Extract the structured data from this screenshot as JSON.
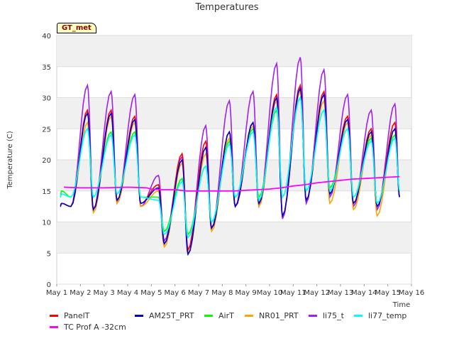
{
  "badge": "GT_met",
  "colors": {
    "PanelT": "#ff0000",
    "AM25T_PRT": "#0000cd",
    "AirT": "#00ff00",
    "NR01_PRT": "#ffa500",
    "li75_t": "#a020f0",
    "li77_temp": "#00ffff",
    "TC Prof A -32cm": "#ff00ff"
  },
  "chart_data": {
    "type": "line",
    "title": "Temperatures",
    "xlabel": "Time",
    "ylabel": "Temperature (C)",
    "ylim": [
      0,
      40
    ],
    "yticks": [
      0,
      5,
      10,
      15,
      20,
      25,
      30,
      35,
      40
    ],
    "xlim": [
      1,
      16
    ],
    "xticks": [
      1,
      2,
      3,
      4,
      5,
      6,
      7,
      8,
      9,
      10,
      11,
      12,
      13,
      14,
      15,
      16
    ],
    "xtick_labels": [
      "May 1",
      "May 2",
      "May 3",
      "May 4",
      "May 5",
      "May 6",
      "May 7",
      "May 8",
      "May 9",
      "May 10",
      "May 11",
      "May 12",
      "May 13",
      "May 14",
      "May 15",
      "May 16"
    ],
    "grid": true,
    "legend_position": "bottom",
    "x_unit": "day of May",
    "daily_max": {
      "x": [
        1.2,
        2.3,
        3.3,
        4.3,
        5.3,
        6.3,
        7.3,
        8.3,
        9.3,
        10.3,
        11.3,
        12.3,
        13.3,
        14.3,
        15.3
      ],
      "PanelT": [
        13,
        28,
        28,
        27,
        16,
        21,
        23,
        24.5,
        26,
        30.5,
        32,
        31,
        27,
        25,
        26
      ],
      "AM25T_PRT": [
        13,
        27.5,
        27.5,
        26.5,
        15.5,
        20,
        22,
        24.5,
        26,
        30,
        31.5,
        30.5,
        26.5,
        24.5,
        25
      ],
      "AirT": [
        15,
        25,
        24.5,
        24.5,
        14,
        17,
        19,
        23,
        25,
        28,
        30,
        28,
        25,
        23.5,
        24
      ],
      "NR01_PRT": [
        13,
        26,
        27,
        26,
        15,
        19.5,
        21,
        23.5,
        25.5,
        29.5,
        31,
        29.5,
        26,
        24,
        25
      ],
      "li75_t": [
        13,
        32,
        31,
        30.5,
        17.5,
        20.5,
        25.5,
        29.5,
        31,
        35.5,
        36.5,
        34.5,
        30.5,
        28,
        29
      ],
      "li77_temp": [
        14.5,
        25,
        24,
        24,
        13.5,
        16.5,
        19,
        22.5,
        24.5,
        28.5,
        30,
        28,
        25,
        23,
        23.5
      ]
    },
    "daily_min": {
      "x": [
        1.6,
        2.55,
        3.55,
        4.55,
        5.55,
        6.55,
        7.55,
        8.55,
        9.55,
        10.55,
        11.55,
        12.55,
        13.55,
        14.55,
        15.5
      ],
      "PanelT": [
        12.5,
        12,
        13.5,
        13,
        6.5,
        5.5,
        9,
        12.5,
        13,
        11,
        13.5,
        14.5,
        13,
        12.5,
        14
      ],
      "AM25T_PRT": [
        12.5,
        12,
        13.5,
        13,
        6.5,
        4.8,
        9,
        12.5,
        13,
        11,
        13.5,
        14.5,
        13,
        12.5,
        14
      ],
      "AirT": [
        14,
        14,
        14.5,
        14,
        8.5,
        8,
        10,
        14,
        14,
        14,
        15,
        15.5,
        14,
        13,
        15
      ],
      "NR01_PRT": [
        12.5,
        11.5,
        13,
        12.5,
        6,
        5,
        8.5,
        12.5,
        12.5,
        11,
        13.5,
        13,
        12,
        11,
        14
      ],
      "li75_t": [
        12.5,
        12,
        13,
        12.5,
        7,
        5.5,
        9,
        12.5,
        12.5,
        10.5,
        13,
        14,
        12.5,
        12,
        14
      ],
      "li77_temp": [
        14,
        14,
        14.5,
        14,
        8,
        7.5,
        10,
        14,
        13.5,
        14,
        15,
        15,
        14,
        13,
        15
      ]
    },
    "series": [
      {
        "name": "PanelT"
      },
      {
        "name": "AM25T_PRT"
      },
      {
        "name": "AirT"
      },
      {
        "name": "NR01_PRT"
      },
      {
        "name": "li75_t"
      },
      {
        "name": "li77_temp"
      },
      {
        "name": "TC Prof A -32cm",
        "x": [
          1.3,
          2,
          3,
          4,
          4.8,
          5,
          5.5,
          6,
          6.5,
          7,
          7.5,
          8,
          8.5,
          9,
          9.5,
          10,
          10.5,
          11,
          11.5,
          12,
          12.5,
          13,
          13.5,
          14,
          14.5,
          15,
          15.5
        ],
        "values": [
          15.6,
          15.5,
          15.5,
          15.6,
          15.5,
          15.3,
          15.2,
          15.2,
          15.0,
          15.0,
          15.0,
          15.0,
          15.0,
          15.1,
          15.2,
          15.3,
          15.5,
          15.8,
          16.0,
          16.3,
          16.5,
          16.7,
          16.9,
          17.0,
          17.1,
          17.2,
          17.3
        ]
      }
    ]
  },
  "legend": {
    "row1": [
      "PanelT",
      "AM25T_PRT",
      "AirT",
      "NR01_PRT",
      "li75_t",
      "li77_temp"
    ],
    "row2": [
      "TC Prof A -32cm"
    ]
  }
}
